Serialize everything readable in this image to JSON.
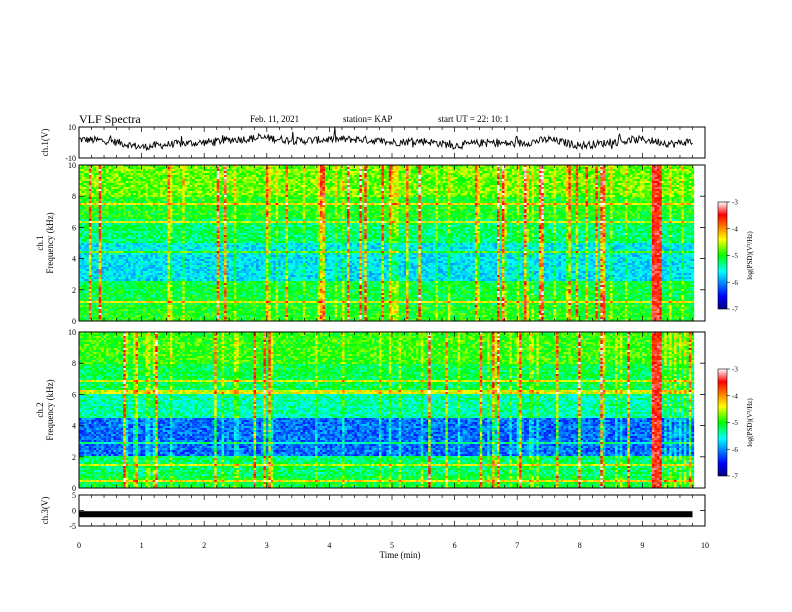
{
  "header": {
    "title": "VLF Spectra",
    "date": "Feb. 11, 2021",
    "station": "station= KAP",
    "start": "start  UT =   22: 10: 1"
  },
  "chart_data": [
    {
      "type": "line",
      "panel": "ch1-waveform",
      "ylabel": "ch.1(V)",
      "ylim": [
        -10,
        10
      ],
      "yticks": [
        {
          "v": 10,
          "t": "10"
        },
        {
          "v": -10,
          "t": "-10"
        }
      ],
      "x": [
        0,
        0.5,
        1,
        1.5,
        2,
        2.5,
        3,
        3.5,
        4,
        4.5,
        5,
        5.5,
        6,
        6.5,
        7,
        7.5,
        8,
        8.5,
        9,
        9.5,
        9.8
      ],
      "y": [
        2,
        1,
        -3,
        -1,
        0,
        2,
        3,
        1,
        2,
        2,
        0,
        1,
        -2,
        0,
        -1,
        2,
        -2,
        0,
        2,
        -1,
        1
      ],
      "color": "#000000"
    },
    {
      "type": "heatmap",
      "panel": "ch1-spectrogram",
      "ylabel": "ch.1\nFrequency (kHz)",
      "ylim": [
        0,
        10
      ],
      "yticks": [
        {
          "v": 0,
          "t": "0"
        },
        {
          "v": 2,
          "t": "2"
        },
        {
          "v": 4,
          "t": "4"
        },
        {
          "v": 6,
          "t": "6"
        },
        {
          "v": 8,
          "t": "8"
        },
        {
          "v": 10,
          "t": "10"
        }
      ],
      "colorbar": {
        "label": "log(PSD)(V²/Hz)",
        "range": [
          -7,
          -3
        ],
        "ticks": [
          {
            "v": -3,
            "t": "-3"
          },
          {
            "v": -4,
            "t": "-4"
          },
          {
            "v": -5,
            "t": "-5"
          },
          {
            "v": -6,
            "t": "-6"
          },
          {
            "v": -7,
            "t": "-7"
          }
        ]
      }
    },
    {
      "type": "heatmap",
      "panel": "ch2-spectrogram",
      "ylabel": "ch.2\nFrequency (kHz)",
      "ylim": [
        0,
        10
      ],
      "yticks": [
        {
          "v": 0,
          "t": "0"
        },
        {
          "v": 2,
          "t": "2"
        },
        {
          "v": 4,
          "t": "4"
        },
        {
          "v": 6,
          "t": "6"
        },
        {
          "v": 8,
          "t": "8"
        },
        {
          "v": 10,
          "t": "10"
        }
      ],
      "colorbar": {
        "label": "log(PSD)(V²/Hz)",
        "range": [
          -7,
          -3
        ],
        "ticks": [
          {
            "v": -3,
            "t": "-3"
          },
          {
            "v": -4,
            "t": "-4"
          },
          {
            "v": -5,
            "t": "-5"
          },
          {
            "v": -6,
            "t": "-6"
          },
          {
            "v": -7,
            "t": "-7"
          }
        ]
      }
    },
    {
      "type": "line",
      "panel": "ch3-waveform",
      "ylabel": "ch.3(V)",
      "ylim": [
        -5,
        5
      ],
      "yticks": [
        {
          "v": 5,
          "t": "5"
        },
        {
          "v": 0,
          "t": "0"
        },
        {
          "v": -5,
          "t": "-5"
        }
      ],
      "x": [
        0,
        9.8
      ],
      "y": [
        -1.2,
        -1.2
      ],
      "color": "#000000"
    }
  ],
  "xaxis": {
    "label": "Time  (min)",
    "xlim": [
      0,
      10
    ],
    "ticks": [
      "0",
      "1",
      "2",
      "3",
      "4",
      "5",
      "6",
      "7",
      "8",
      "9",
      "10"
    ]
  }
}
